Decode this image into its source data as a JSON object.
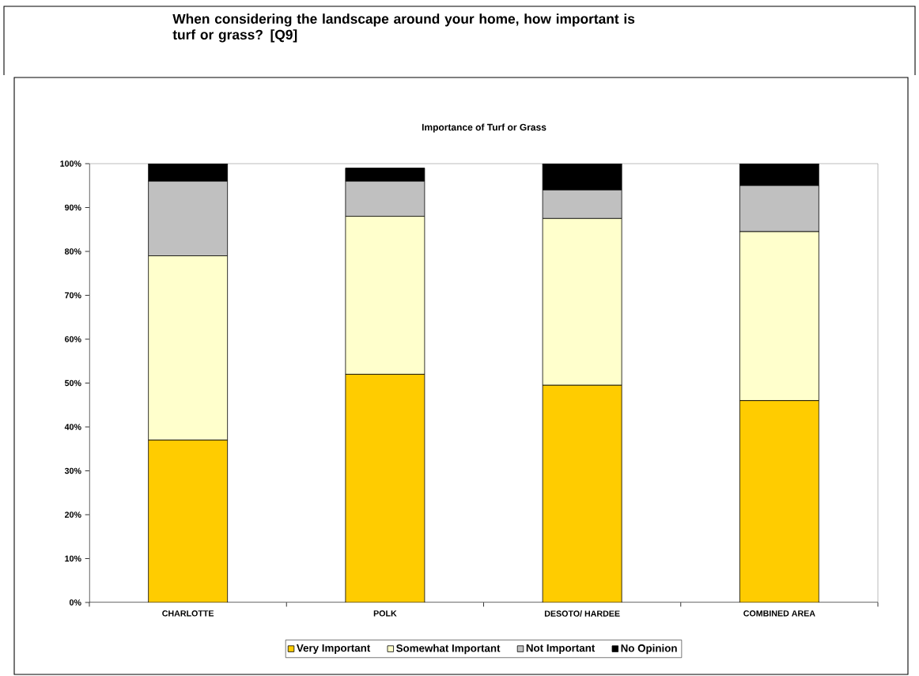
{
  "chart_data": {
    "type": "bar",
    "title": "When considering the landscape around your home, how important is turf or grass? [Q9]",
    "subtitle": "Importance of Turf or Grass",
    "categories": [
      "CHARLOTTE",
      "POLK",
      "DESOTO/ HARDEE",
      "COMBINED AREA"
    ],
    "stacked": true,
    "series": [
      {
        "name": "Very Important",
        "color": "#ffcc00",
        "values": [
          37,
          52,
          49.5,
          46
        ]
      },
      {
        "name": "Somewhat Important",
        "color": "#ffffcc",
        "values": [
          42,
          36,
          38,
          38.5
        ]
      },
      {
        "name": "Not Important",
        "color": "#c0c0c0",
        "values": [
          17,
          8,
          6.5,
          10.5
        ]
      },
      {
        "name": "No Opinion",
        "color": "#000000",
        "values": [
          4,
          3,
          6,
          5
        ]
      }
    ],
    "ylim": [
      0,
      100
    ],
    "yticks": [
      {
        "value": 0,
        "label": "0%"
      },
      {
        "value": 10,
        "label": "10%"
      },
      {
        "value": 20,
        "label": "20%"
      },
      {
        "value": 30,
        "label": "30%"
      },
      {
        "value": 40,
        "label": "40%"
      },
      {
        "value": 50,
        "label": "50%"
      },
      {
        "value": 60,
        "label": "60%"
      },
      {
        "value": 70,
        "label": "70%"
      },
      {
        "value": 80,
        "label": "80%"
      },
      {
        "value": 90,
        "label": "90%"
      },
      {
        "value": 100,
        "label": "100%"
      }
    ],
    "grid": false,
    "legend": "bottom"
  }
}
